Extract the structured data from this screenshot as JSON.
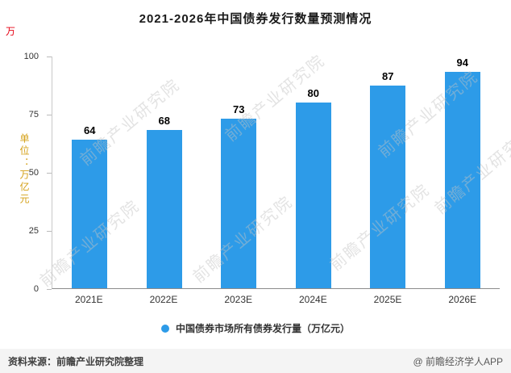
{
  "page": {
    "corner_mark": "万",
    "watermark": "前瞻产业研究院",
    "footer_left": "资料来源：前瞻产业研究院整理",
    "footer_right": "@ 前瞻经济学人APP"
  },
  "chart_data": {
    "type": "bar",
    "title": "2021-2026年中国债券发行数量预测情况",
    "categories": [
      "2021E",
      "2022E",
      "2023E",
      "2024E",
      "2025E",
      "2026E"
    ],
    "values": [
      64,
      68,
      73,
      80,
      87,
      94
    ],
    "xlabel": "",
    "ylabel": "单位：万亿元",
    "ylim": [
      0,
      100
    ],
    "yticks": [
      0,
      25,
      50,
      75,
      100
    ],
    "grid": false,
    "legend": "中国债券市场所有债券发行量（万亿元）",
    "legend_position": "bottom",
    "bar_color": "#2d9be8"
  }
}
